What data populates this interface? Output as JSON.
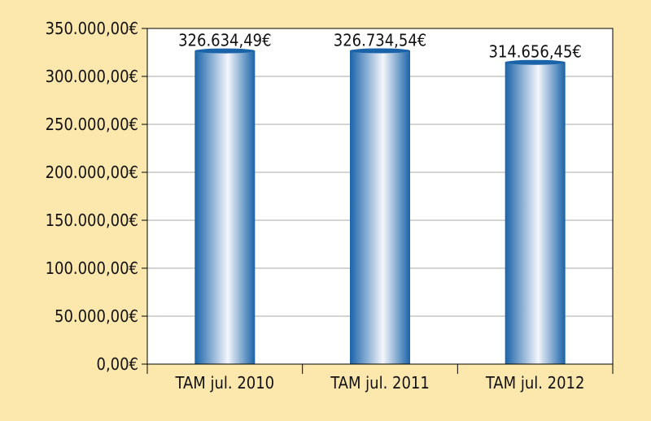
{
  "colors": {
    "background": "#fce7ad",
    "plot_area": "#ffffff",
    "gridline": "#aaaaaa",
    "bar_edge": "#1a63a8",
    "bar_center": "#f4f6fb",
    "bar_top": "#1a63a8"
  },
  "chart_data": {
    "type": "bar",
    "categories": [
      "TAM jul. 2010",
      "TAM jul. 2011",
      "TAM jul. 2012"
    ],
    "values": [
      326634.49,
      326734.54,
      314656.45
    ],
    "data_labels": [
      "326.634,49€",
      "326.734,54€",
      "314.656,45€"
    ],
    "ylim": [
      0,
      350000
    ],
    "yticks": [
      0,
      50000,
      100000,
      150000,
      200000,
      250000,
      300000,
      350000
    ],
    "ytick_labels": [
      "0,00€",
      "50.000,00€",
      "100.000,00€",
      "150.000,00€",
      "200.000,00€",
      "250.000,00€",
      "300.000,00€",
      "350.000,00€"
    ],
    "grid": true,
    "legend": "none",
    "title": "",
    "xlabel": "",
    "ylabel": ""
  }
}
